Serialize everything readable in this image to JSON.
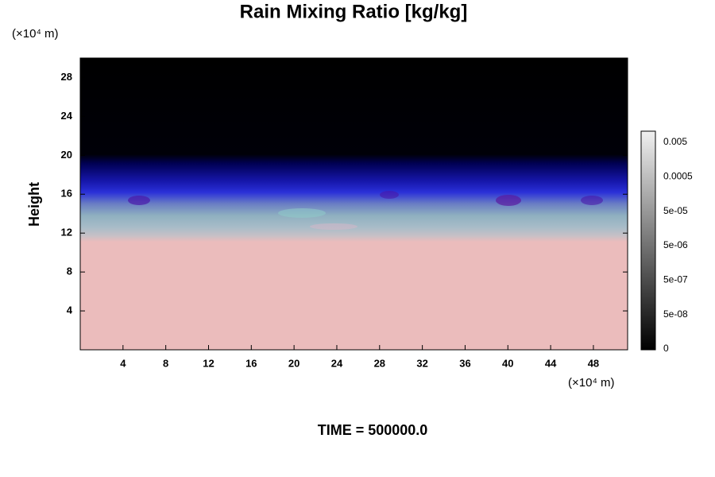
{
  "chart_data": {
    "type": "heatmap",
    "title": "Rain Mixing Ratio [kg/kg]",
    "ylabel": "Height",
    "y_unit": "(×10⁴ m)",
    "x_unit": "(×10⁴ m)",
    "footer": "TIME = 500000.0",
    "xlim": [
      0,
      51.2
    ],
    "xticks": [
      4,
      8,
      12,
      16,
      20,
      24,
      28,
      32,
      36,
      40,
      44,
      48
    ],
    "ylim": [
      0,
      30
    ],
    "yticks": [
      4,
      8,
      12,
      16,
      20,
      24,
      28
    ],
    "colorbar": {
      "labels": [
        "0",
        "5e-08",
        "5e-07",
        "5e-06",
        "5e-05",
        "0.0005",
        "0.005"
      ]
    }
  }
}
